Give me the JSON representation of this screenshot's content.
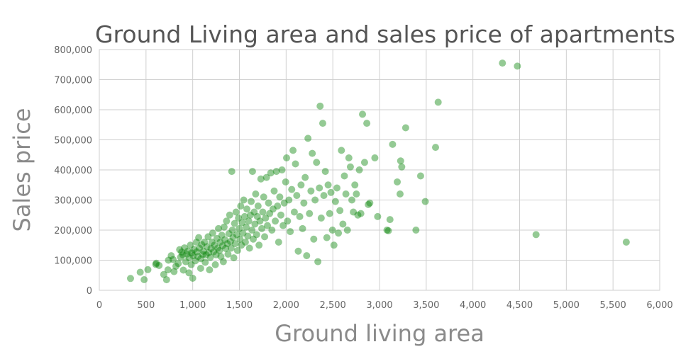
{
  "chart_data": {
    "type": "scatter",
    "title": "Ground Living area and sales price of apartments",
    "xlabel": "Ground living area",
    "ylabel": "Sales price",
    "xlim": [
      0,
      6000
    ],
    "ylim": [
      0,
      800000
    ],
    "x_ticks": [
      0,
      500,
      1000,
      1500,
      2000,
      2500,
      3000,
      3500,
      4000,
      4500,
      5000,
      5500,
      6000
    ],
    "y_ticks": [
      0,
      100000,
      200000,
      300000,
      400000,
      500000,
      600000,
      700000,
      800000
    ],
    "x_tick_labels": [
      "0",
      "500",
      "1,000",
      "1,500",
      "2,000",
      "2,500",
      "3,000",
      "3,500",
      "4,000",
      "4,500",
      "5,000",
      "5,500",
      "6,000"
    ],
    "y_tick_labels": [
      "0",
      "100,000",
      "200,000",
      "300,000",
      "400,000",
      "500,000",
      "600,000",
      "700,000",
      "800,000"
    ],
    "grid": true,
    "marker_color": "#008000",
    "series": [
      {
        "points": [
          [
            334,
            39300
          ],
          [
            438,
            60000
          ],
          [
            480,
            35311
          ],
          [
            520,
            68500
          ],
          [
            605,
            86000
          ],
          [
            610,
            90000
          ],
          [
            640,
            82500
          ],
          [
            690,
            52500
          ],
          [
            720,
            35000
          ],
          [
            735,
            68000
          ],
          [
            740,
            100000
          ],
          [
            770,
            115000
          ],
          [
            790,
            102000
          ],
          [
            800,
            62000
          ],
          [
            820,
            80000
          ],
          [
            845,
            89000
          ],
          [
            860,
            135000
          ],
          [
            870,
            110000
          ],
          [
            882,
            127000
          ],
          [
            894,
            118000
          ],
          [
            900,
            67000
          ],
          [
            912,
            141000
          ],
          [
            925,
            95000
          ],
          [
            936,
            120000
          ],
          [
            948,
            130000
          ],
          [
            960,
            58000
          ],
          [
            962,
            108000
          ],
          [
            975,
            150000
          ],
          [
            984,
            85000
          ],
          [
            990,
            124000
          ],
          [
            1000,
            40000
          ],
          [
            1004,
            115000
          ],
          [
            1015,
            136000
          ],
          [
            1028,
            98000
          ],
          [
            1040,
            160000
          ],
          [
            1044,
            128000
          ],
          [
            1056,
            112000
          ],
          [
            1064,
            175000
          ],
          [
            1072,
            140000
          ],
          [
            1085,
            73000
          ],
          [
            1088,
            105000
          ],
          [
            1096,
            152000
          ],
          [
            1108,
            119000
          ],
          [
            1115,
            130000
          ],
          [
            1126,
            160000
          ],
          [
            1134,
            93000
          ],
          [
            1144,
            118000
          ],
          [
            1152,
            145000
          ],
          [
            1165,
            178000
          ],
          [
            1172,
            125000
          ],
          [
            1180,
            68000
          ],
          [
            1188,
            109000
          ],
          [
            1196,
            139000
          ],
          [
            1206,
            160000
          ],
          [
            1214,
            190000
          ],
          [
            1224,
            128000
          ],
          [
            1232,
            150000
          ],
          [
            1242,
            85000
          ],
          [
            1250,
            118000
          ],
          [
            1260,
            172000
          ],
          [
            1268,
            140000
          ],
          [
            1276,
            205000
          ],
          [
            1286,
            132000
          ],
          [
            1294,
            160000
          ],
          [
            1302,
            112000
          ],
          [
            1312,
            183000
          ],
          [
            1320,
            148000
          ],
          [
            1328,
            95000
          ],
          [
            1336,
            210000
          ],
          [
            1344,
            168000
          ],
          [
            1352,
            139000
          ],
          [
            1362,
            230000
          ],
          [
            1370,
            155000
          ],
          [
            1378,
            120000
          ],
          [
            1388,
            188000
          ],
          [
            1396,
            250000
          ],
          [
            1404,
            162000
          ],
          [
            1412,
            140000
          ],
          [
            1418,
            395000
          ],
          [
            1424,
            200000
          ],
          [
            1432,
            176000
          ],
          [
            1440,
            108000
          ],
          [
            1448,
            222000
          ],
          [
            1456,
            155000
          ],
          [
            1464,
            260000
          ],
          [
            1472,
            185000
          ],
          [
            1480,
            132000
          ],
          [
            1490,
            240000
          ],
          [
            1498,
            205000
          ],
          [
            1506,
            170000
          ],
          [
            1514,
            280000
          ],
          [
            1522,
            150000
          ],
          [
            1530,
            225000
          ],
          [
            1538,
            190000
          ],
          [
            1546,
            300000
          ],
          [
            1556,
            245000
          ],
          [
            1564,
            160000
          ],
          [
            1572,
            210000
          ],
          [
            1580,
            270000
          ],
          [
            1590,
            180000
          ],
          [
            1600,
            230000
          ],
          [
            1608,
            140000
          ],
          [
            1618,
            250000
          ],
          [
            1626,
            295000
          ],
          [
            1634,
            200000
          ],
          [
            1640,
            395000
          ],
          [
            1648,
            170000
          ],
          [
            1658,
            260000
          ],
          [
            1666,
            220000
          ],
          [
            1674,
            320000
          ],
          [
            1684,
            185000
          ],
          [
            1692,
            245000
          ],
          [
            1700,
            280000
          ],
          [
            1710,
            150000
          ],
          [
            1720,
            230000
          ],
          [
            1730,
            370000
          ],
          [
            1740,
            205000
          ],
          [
            1750,
            260000
          ],
          [
            1760,
            310000
          ],
          [
            1770,
            178000
          ],
          [
            1780,
            240000
          ],
          [
            1790,
            375000
          ],
          [
            1800,
            215000
          ],
          [
            1812,
            290000
          ],
          [
            1824,
            255000
          ],
          [
            1836,
            390000
          ],
          [
            1848,
            200000
          ],
          [
            1860,
            270000
          ],
          [
            1872,
            330000
          ],
          [
            1884,
            230000
          ],
          [
            1896,
            395000
          ],
          [
            1908,
            280000
          ],
          [
            1920,
            160000
          ],
          [
            1932,
            310000
          ],
          [
            1944,
            250000
          ],
          [
            1956,
            400000
          ],
          [
            1968,
            215000
          ],
          [
            1980,
            290000
          ],
          [
            1995,
            360000
          ],
          [
            2005,
            440000
          ],
          [
            2015,
            230000
          ],
          [
            2030,
            300000
          ],
          [
            2044,
            195000
          ],
          [
            2060,
            335000
          ],
          [
            2074,
            465000
          ],
          [
            2088,
            260000
          ],
          [
            2100,
            420000
          ],
          [
            2114,
            315000
          ],
          [
            2130,
            130000
          ],
          [
            2146,
            245000
          ],
          [
            2160,
            350000
          ],
          [
            2176,
            205000
          ],
          [
            2190,
            290000
          ],
          [
            2204,
            375000
          ],
          [
            2220,
            115000
          ],
          [
            2234,
            505000
          ],
          [
            2250,
            255000
          ],
          [
            2266,
            330000
          ],
          [
            2280,
            455000
          ],
          [
            2296,
            170000
          ],
          [
            2310,
            300000
          ],
          [
            2326,
            425000
          ],
          [
            2340,
            95000
          ],
          [
            2356,
            340000
          ],
          [
            2364,
            612000
          ],
          [
            2376,
            240000
          ],
          [
            2392,
            555000
          ],
          [
            2404,
            315000
          ],
          [
            2420,
            395000
          ],
          [
            2436,
            175000
          ],
          [
            2450,
            350000
          ],
          [
            2466,
            255000
          ],
          [
            2480,
            325000
          ],
          [
            2496,
            200000
          ],
          [
            2512,
            150000
          ],
          [
            2528,
            295000
          ],
          [
            2544,
            340000
          ],
          [
            2560,
            190000
          ],
          [
            2576,
            265000
          ],
          [
            2592,
            465000
          ],
          [
            2608,
            220000
          ],
          [
            2624,
            380000
          ],
          [
            2640,
            320000
          ],
          [
            2656,
            200000
          ],
          [
            2672,
            440000
          ],
          [
            2688,
            410000
          ],
          [
            2704,
            300000
          ],
          [
            2720,
            260000
          ],
          [
            2736,
            350000
          ],
          [
            2752,
            320000
          ],
          [
            2768,
            250000
          ],
          [
            2784,
            400000
          ],
          [
            2800,
            255000
          ],
          [
            2818,
            585000
          ],
          [
            2840,
            425000
          ],
          [
            2864,
            555000
          ],
          [
            2880,
            285000
          ],
          [
            2896,
            290000
          ],
          [
            2950,
            440000
          ],
          [
            2980,
            245000
          ],
          [
            3080,
            200000
          ],
          [
            3095,
            198000
          ],
          [
            3112,
            235000
          ],
          [
            3140,
            485000
          ],
          [
            3190,
            360000
          ],
          [
            3220,
            320000
          ],
          [
            3226,
            430000
          ],
          [
            3238,
            410000
          ],
          [
            3280,
            540000
          ],
          [
            3390,
            200000
          ],
          [
            3440,
            380000
          ],
          [
            3490,
            295000
          ],
          [
            3600,
            475000
          ],
          [
            3628,
            625000
          ],
          [
            4316,
            755000
          ],
          [
            4476,
            745000
          ],
          [
            4676,
            185000
          ],
          [
            5642,
            160000
          ]
        ]
      }
    ]
  }
}
